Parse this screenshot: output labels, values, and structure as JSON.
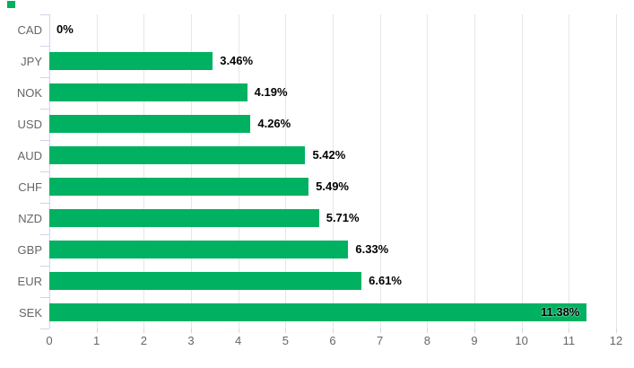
{
  "legend": {
    "marker_color": "#00b161"
  },
  "chart_data": {
    "type": "bar",
    "orientation": "horizontal",
    "title": "",
    "xlabel": "",
    "ylabel": "",
    "categories": [
      "CAD",
      "JPY",
      "NOK",
      "USD",
      "AUD",
      "CHF",
      "NZD",
      "GBP",
      "EUR",
      "SEK"
    ],
    "values": [
      0,
      3.46,
      4.19,
      4.26,
      5.42,
      5.49,
      5.71,
      6.33,
      6.61,
      11.38
    ],
    "value_labels": [
      "0%",
      "3.46%",
      "4.19%",
      "4.26%",
      "5.42%",
      "5.49%",
      "5.71%",
      "6.33%",
      "6.61%",
      "11.38%"
    ],
    "xlim": [
      0,
      12
    ],
    "x_ticks": [
      "0",
      "1",
      "2",
      "3",
      "4",
      "5",
      "6",
      "7",
      "8",
      "9",
      "10",
      "11",
      "12"
    ],
    "grid": true,
    "legend_position": "none",
    "colors": {
      "bar": "#00b161",
      "category_label": "#666666",
      "value_label": "#000000",
      "gridline": "#e6e6e6",
      "axis": "#ccd6eb",
      "background": "#ffffff"
    }
  }
}
